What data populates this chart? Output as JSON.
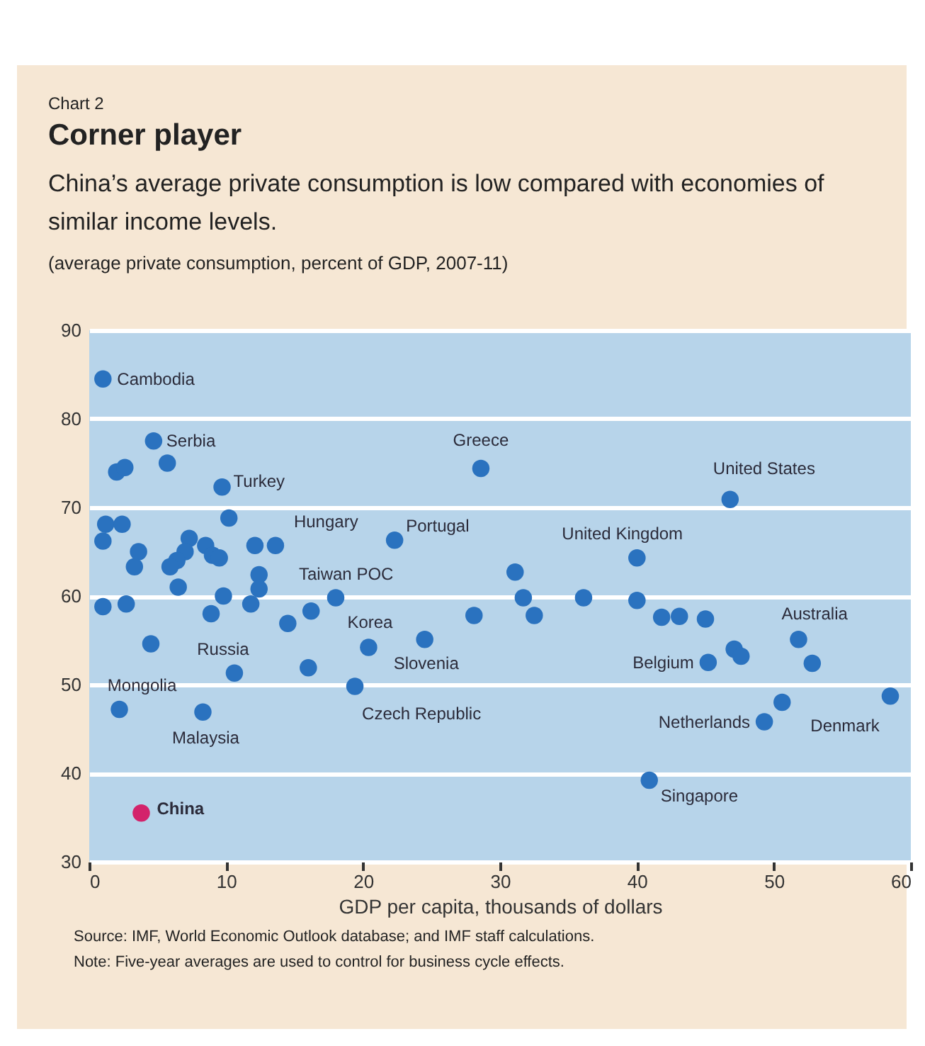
{
  "chart_data": {
    "type": "scatter",
    "title": "Corner player",
    "subtitle": "China’s average private consumption is low compared with economies of similar income levels.",
    "ylabel": "(average private consumption, percent of GDP, 2007-11)",
    "xlabel": "GDP per capita,  thousands of dollars",
    "xlim": [
      0,
      60
    ],
    "xticks": [
      0,
      10,
      20,
      30,
      40,
      50,
      60
    ],
    "ylim": [
      30,
      90
    ],
    "yticks": [
      30,
      40,
      50,
      60,
      70,
      80,
      90
    ],
    "grid": "y",
    "marker": "circle",
    "series": [
      {
        "color": "#2a72bf",
        "x": [
          1.0,
          4.7,
          5.7,
          2.0,
          2.6,
          9.7,
          10.2,
          1.2,
          2.4,
          1.0,
          3.6,
          3.3,
          7.3,
          7.0,
          6.4,
          5.9,
          8.5,
          9.0,
          9.5,
          12.1,
          13.6,
          12.4,
          12.4,
          11.8,
          6.5,
          1.0,
          2.7,
          8.9,
          9.8,
          4.5,
          14.5,
          16.2,
          18.0,
          10.6,
          16.0,
          20.4,
          24.5,
          19.4,
          2.2,
          8.3,
          22.3,
          28.6,
          31.1,
          28.1,
          31.7,
          32.5,
          36.1,
          40.0,
          46.8,
          40.0,
          41.8,
          43.1,
          45.0,
          45.2,
          47.1,
          47.6,
          51.8,
          52.8,
          50.6,
          49.3,
          58.5,
          40.9
        ],
        "values": [
          84.5,
          77.5,
          75,
          74,
          74.5,
          72.3,
          68.8,
          68.1,
          68.1,
          66.2,
          65,
          63.3,
          66.5,
          65,
          64,
          63.3,
          65.7,
          64.6,
          64.3,
          65.7,
          65.7,
          62.4,
          60.8,
          59.1,
          61,
          58.8,
          59.1,
          58,
          60,
          54.6,
          56.9,
          58.3,
          59.8,
          51.3,
          51.9,
          54.2,
          55.1,
          49.8,
          47.2,
          46.9,
          66.3,
          74.4,
          62.7,
          57.8,
          59.8,
          57.8,
          59.8,
          64.3,
          70.9,
          59.5,
          57.6,
          57.7,
          57.4,
          52.5,
          54,
          53.2,
          55.1,
          52.4,
          48,
          45.8,
          48.7,
          39.2
        ]
      },
      {
        "color": "#d3236b",
        "x": [
          3.8
        ],
        "values": [
          35.5
        ]
      }
    ],
    "annotations": [
      "Chart 2",
      "Source: IMF, World Economic Outlook database; and IMF staff calculations.",
      "Note: Five-year averages are used to control for business cycle effects.",
      {
        "text": "Cambodia",
        "x": 1.0,
        "y": 84.5
      },
      {
        "text": "Serbia",
        "x": 4.7,
        "y": 77.5
      },
      {
        "text": "Turkey",
        "x": 9.7,
        "y": 72.3
      },
      {
        "text": "Hungary",
        "x": 13.6,
        "y": 65.7
      },
      {
        "text": "Taiwan POC",
        "x": 18.0,
        "y": 59.8
      },
      {
        "text": "Russia",
        "x": 10.6,
        "y": 51.3
      },
      {
        "text": "Mongolia",
        "x": 2.2,
        "y": 47.2
      },
      {
        "text": "Malaysia",
        "x": 8.3,
        "y": 46.9
      },
      {
        "text": "Korea",
        "x": 20.4,
        "y": 54.2
      },
      {
        "text": "Slovenia",
        "x": 24.5,
        "y": 55.1
      },
      {
        "text": "Czech Republic",
        "x": 19.4,
        "y": 49.8
      },
      {
        "text": "Portugal",
        "x": 22.3,
        "y": 66.3
      },
      {
        "text": "Greece",
        "x": 28.6,
        "y": 74.4
      },
      {
        "text": "United Kingdom",
        "x": 40.0,
        "y": 64.3
      },
      {
        "text": "United States",
        "x": 46.8,
        "y": 70.9
      },
      {
        "text": "Belgium",
        "x": 45.2,
        "y": 52.5
      },
      {
        "text": "Australia",
        "x": 51.8,
        "y": 55.1
      },
      {
        "text": "Netherlands",
        "x": 49.3,
        "y": 45.8
      },
      {
        "text": "Denmark",
        "x": 58.5,
        "y": 48.7
      },
      {
        "text": "Singapore",
        "x": 40.9,
        "y": 39.2
      },
      {
        "text": "China",
        "x": 3.8,
        "y": 35.5
      }
    ]
  }
}
